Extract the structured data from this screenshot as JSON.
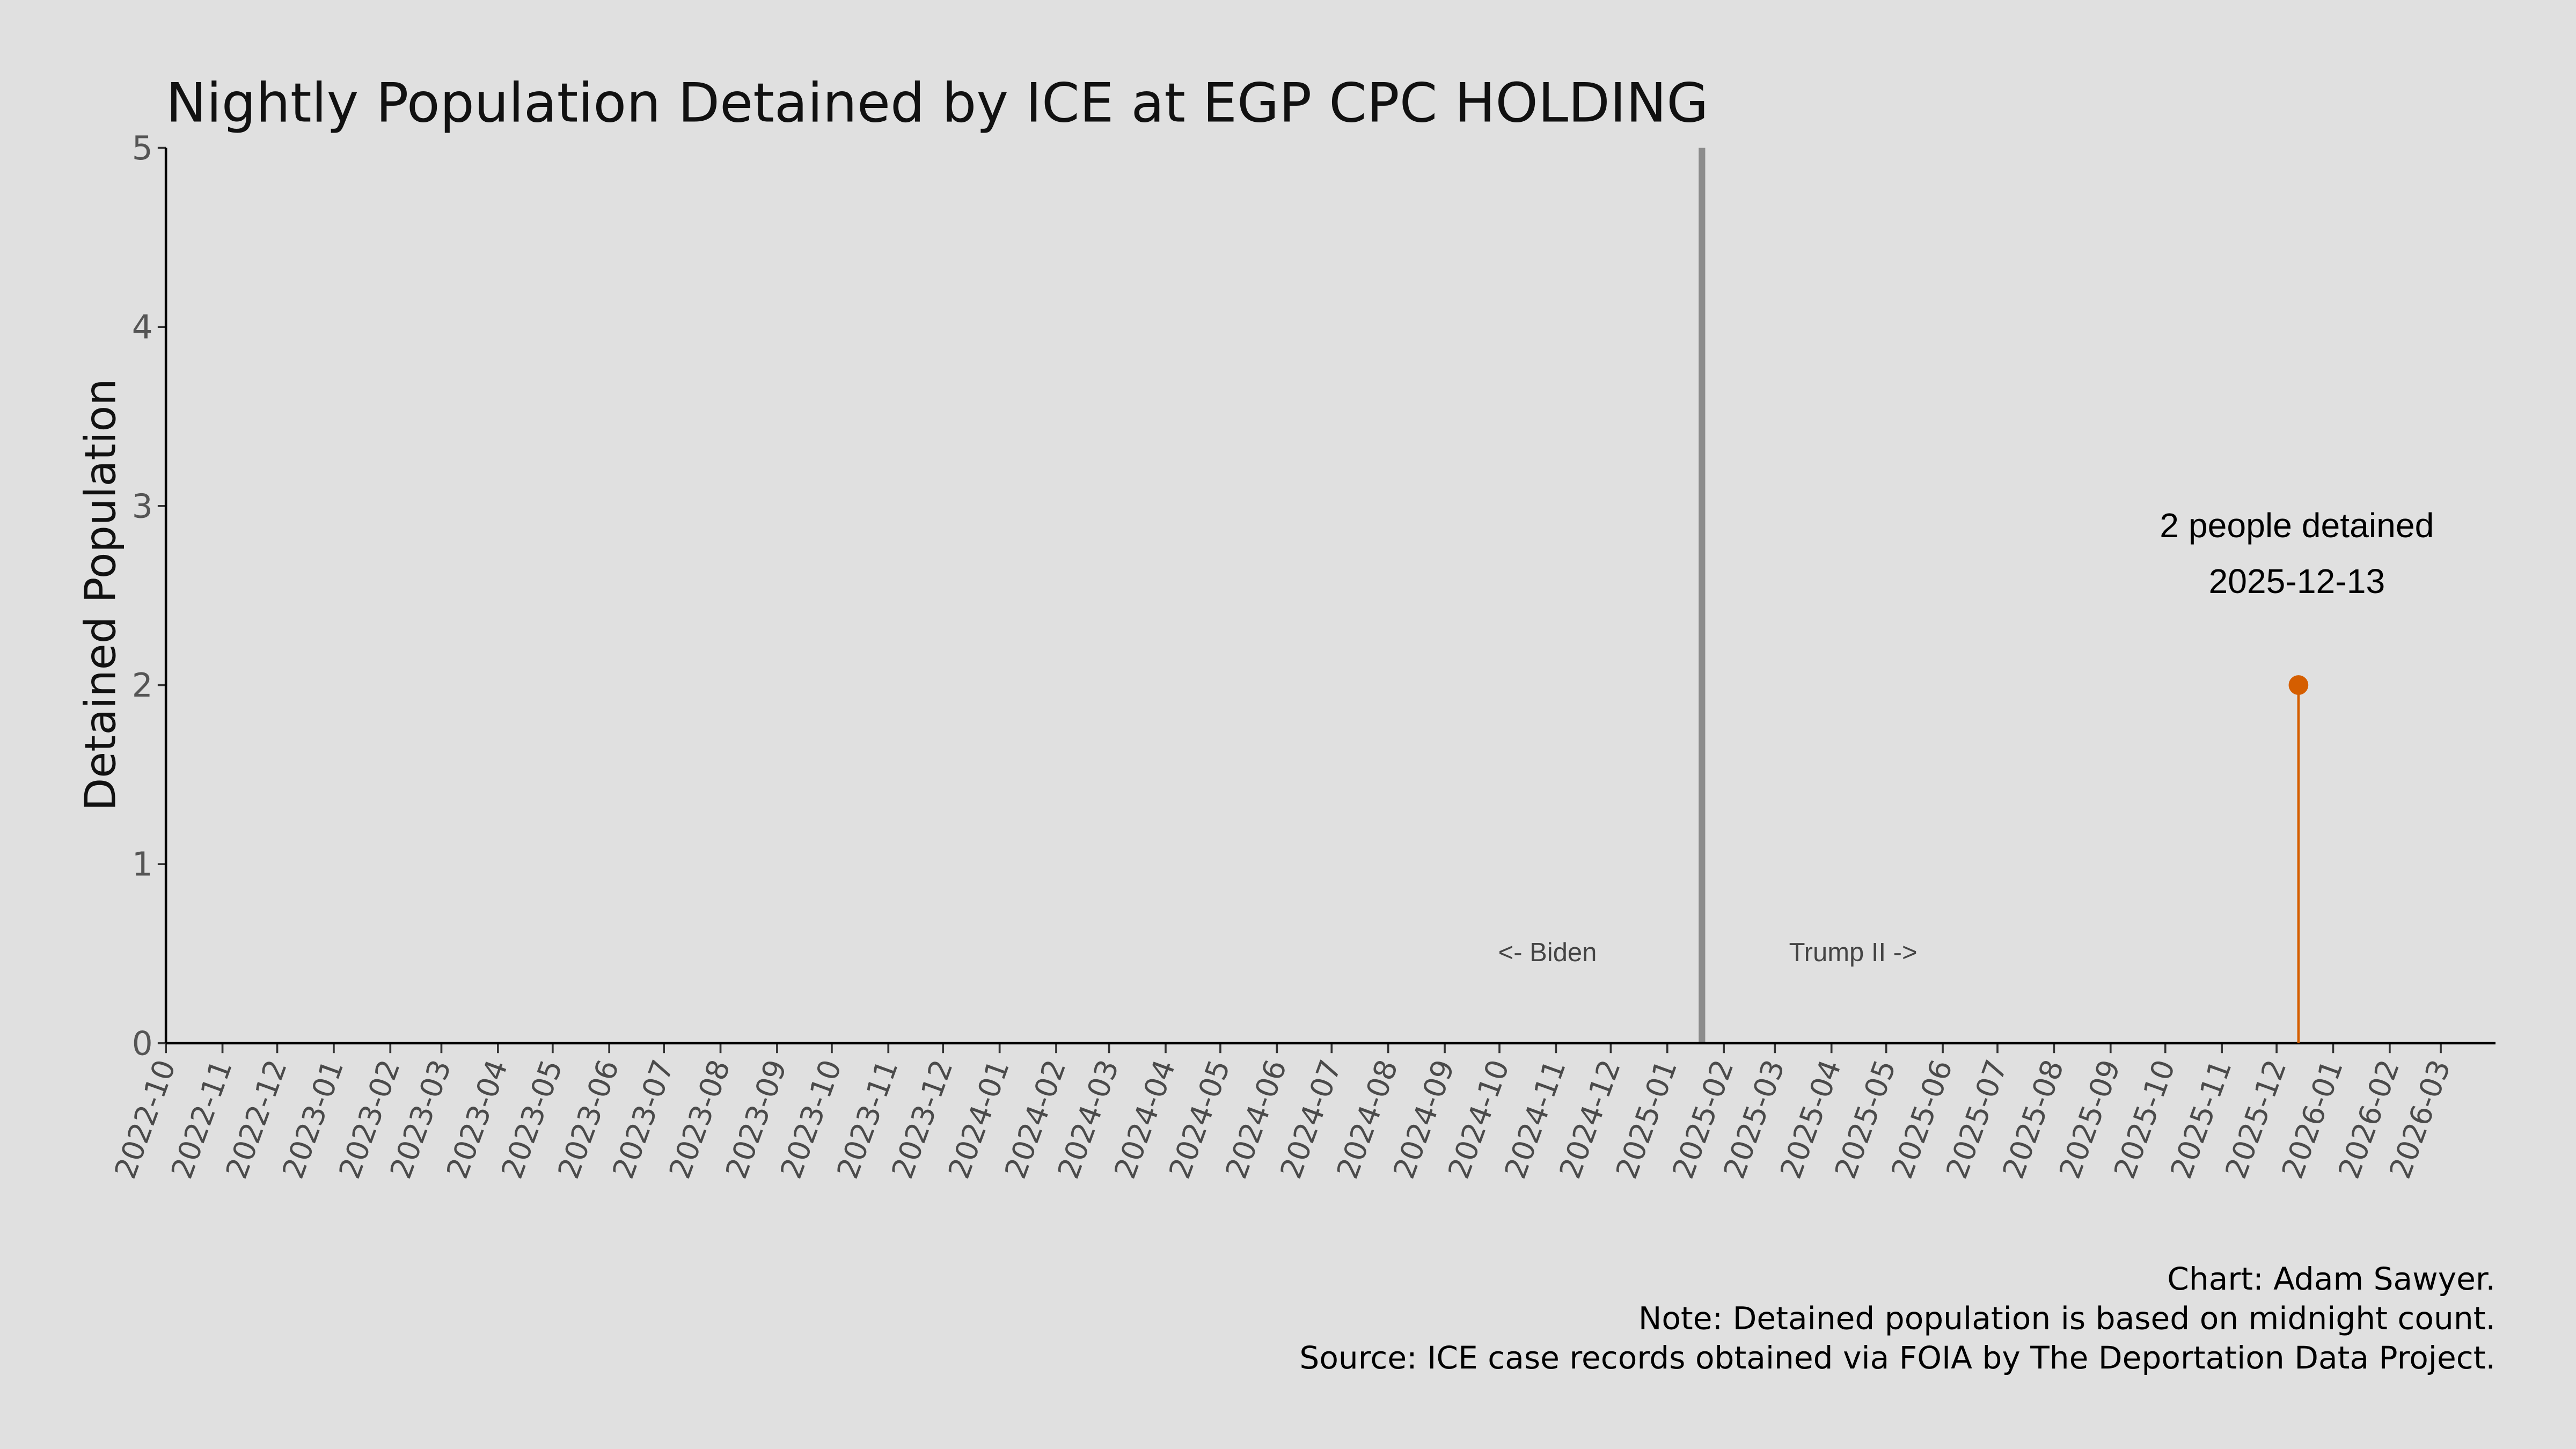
{
  "chart_data": {
    "type": "scatter",
    "title": "Nightly Population Detained by ICE at EGP CPC HOLDING",
    "xlabel": "",
    "ylabel": "Detained Population",
    "xlim": [
      "2022-10-01",
      "2026-03-31"
    ],
    "ylim": [
      0,
      5
    ],
    "yticks": [
      "0",
      "1",
      "2",
      "3",
      "4",
      "5"
    ],
    "xticks": [
      "2022-10",
      "2022-11",
      "2022-12",
      "2023-01",
      "2023-02",
      "2023-03",
      "2023-04",
      "2023-05",
      "2023-06",
      "2023-07",
      "2023-08",
      "2023-09",
      "2023-10",
      "2023-11",
      "2023-12",
      "2024-01",
      "2024-02",
      "2024-03",
      "2024-04",
      "2024-05",
      "2024-06",
      "2024-07",
      "2024-08",
      "2024-09",
      "2024-10",
      "2024-11",
      "2024-12",
      "2025-01",
      "2025-02",
      "2025-03",
      "2025-04",
      "2025-05",
      "2025-06",
      "2025-07",
      "2025-08",
      "2025-09",
      "2025-10",
      "2025-11",
      "2025-12",
      "2026-01",
      "2026-02",
      "2026-03"
    ],
    "grid": false,
    "series": [
      {
        "points": [
          {
            "x": "2025-12-13",
            "y": 2
          }
        ],
        "color": "#d55e00",
        "style": "lollipop"
      }
    ],
    "reference_line": {
      "x": "2025-01-20",
      "color": "#8c8c8c",
      "left_label": "<- Biden",
      "right_label": "Trump II ->"
    },
    "annotation": {
      "line1": "2 people detained",
      "line2": "2025-12-13"
    }
  },
  "footer": {
    "credit": "Chart: Adam Sawyer.",
    "note": "Note: Detained population is based on midnight count.",
    "source": "Source: ICE case records obtained via FOIA by The Deportation Data Project."
  }
}
